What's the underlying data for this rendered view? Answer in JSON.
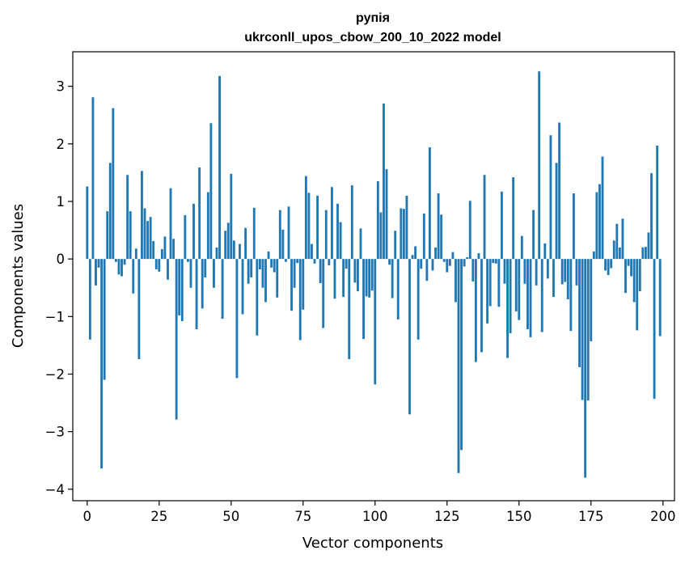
{
  "chart_data": {
    "type": "bar",
    "title": "рупія",
    "subtitle": "ukrconll_upos_cbow_200_10_2022 model",
    "xlabel": "Vector components",
    "ylabel": "Components values",
    "xlim": [
      -5,
      204
    ],
    "ylim": [
      -4.2,
      3.6
    ],
    "xticks": [
      0,
      25,
      50,
      75,
      100,
      125,
      150,
      175,
      200
    ],
    "xtick_labels": [
      "0",
      "25",
      "50",
      "75",
      "100",
      "125",
      "150",
      "175",
      "200"
    ],
    "yticks": [
      3,
      2,
      1,
      0,
      -1,
      -2,
      -3,
      -4
    ],
    "ytick_labels": [
      "3",
      "2",
      "1",
      "0",
      "−1",
      "−2",
      "−3",
      "−4"
    ],
    "color": "#1f77b4",
    "grid": false,
    "legend": "none",
    "x": [
      0,
      1,
      2,
      3,
      4,
      5,
      6,
      7,
      8,
      9,
      10,
      11,
      12,
      13,
      14,
      15,
      16,
      17,
      18,
      19,
      20,
      21,
      22,
      23,
      24,
      25,
      26,
      27,
      28,
      29,
      30,
      31,
      32,
      33,
      34,
      35,
      36,
      37,
      38,
      39,
      40,
      41,
      42,
      43,
      44,
      45,
      46,
      47,
      48,
      49,
      50,
      51,
      52,
      53,
      54,
      55,
      56,
      57,
      58,
      59,
      60,
      61,
      62,
      63,
      64,
      65,
      66,
      67,
      68,
      69,
      70,
      71,
      72,
      73,
      74,
      75,
      76,
      77,
      78,
      79,
      80,
      81,
      82,
      83,
      84,
      85,
      86,
      87,
      88,
      89,
      90,
      91,
      92,
      93,
      94,
      95,
      96,
      97,
      98,
      99,
      100,
      101,
      102,
      103,
      104,
      105,
      106,
      107,
      108,
      109,
      110,
      111,
      112,
      113,
      114,
      115,
      116,
      117,
      118,
      119,
      120,
      121,
      122,
      123,
      124,
      125,
      126,
      127,
      128,
      129,
      130,
      131,
      132,
      133,
      134,
      135,
      136,
      137,
      138,
      139,
      140,
      141,
      142,
      143,
      144,
      145,
      146,
      147,
      148,
      149,
      150,
      151,
      152,
      153,
      154,
      155,
      156,
      157,
      158,
      159,
      160,
      161,
      162,
      163,
      164,
      165,
      166,
      167,
      168,
      169,
      170,
      171,
      172,
      173,
      174,
      175,
      176,
      177,
      178,
      179,
      180,
      181,
      182,
      183,
      184,
      185,
      186,
      187,
      188,
      189,
      190,
      191,
      192,
      193,
      194,
      195,
      196,
      197,
      198,
      199
    ],
    "values": [
      1.26,
      -1.4,
      2.81,
      -0.46,
      -0.15,
      -3.64,
      -2.1,
      0.83,
      1.67,
      2.62,
      -0.05,
      -0.27,
      -0.3,
      -0.1,
      1.46,
      0.83,
      -0.6,
      0.18,
      -1.74,
      1.53,
      0.88,
      0.66,
      0.73,
      0.31,
      -0.18,
      -0.22,
      0.17,
      0.39,
      -0.36,
      1.23,
      0.35,
      -2.79,
      -0.98,
      -1.08,
      0.76,
      -0.05,
      -0.5,
      0.96,
      -1.22,
      1.59,
      -0.86,
      -0.32,
      1.16,
      2.36,
      -0.5,
      0.2,
      3.18,
      -1.04,
      0.49,
      0.63,
      1.48,
      0.32,
      -2.07,
      0.26,
      -0.96,
      0.54,
      -0.43,
      -0.32,
      0.89,
      -1.33,
      -0.18,
      -0.5,
      -0.75,
      0.13,
      -0.15,
      -0.23,
      -0.67,
      0.85,
      0.51,
      -0.05,
      0.91,
      -0.9,
      -0.5,
      -0.07,
      -1.41,
      -0.88,
      1.44,
      1.15,
      0.26,
      -0.08,
      1.1,
      -0.42,
      -1.2,
      0.85,
      -0.11,
      1.25,
      -0.69,
      0.96,
      0.64,
      -0.66,
      -0.17,
      -1.74,
      1.28,
      -0.41,
      -0.56,
      0.53,
      -1.39,
      -0.65,
      -0.67,
      -0.55,
      -2.18,
      1.35,
      0.81,
      2.7,
      1.56,
      -0.1,
      -0.68,
      0.49,
      -1.05,
      0.88,
      0.87,
      1.1,
      -2.7,
      0.07,
      0.22,
      -1.4,
      -0.17,
      0.79,
      -0.38,
      1.94,
      -0.2,
      0.2,
      1.14,
      0.77,
      -0.05,
      -0.23,
      -0.12,
      0.12,
      -0.75,
      -3.72,
      -3.32,
      -0.13,
      0.03,
      1.01,
      -0.39,
      -1.79,
      0.1,
      -1.62,
      1.46,
      -1.12,
      -0.82,
      -0.07,
      -0.08,
      -0.83,
      1.17,
      -0.43,
      -1.72,
      -1.29,
      1.42,
      -0.91,
      -1.06,
      0.4,
      -0.43,
      -1.22,
      -1.36,
      0.85,
      -0.46,
      3.26,
      -1.27,
      0.27,
      -0.34,
      2.15,
      -0.66,
      1.67,
      2.37,
      -0.44,
      -0.4,
      -0.7,
      -1.25,
      1.14,
      -0.46,
      -1.88,
      -2.45,
      -3.8,
      -2.46,
      -1.43,
      0.13,
      1.16,
      1.3,
      1.78,
      -0.2,
      -0.28,
      -0.16,
      0.32,
      0.61,
      0.2,
      0.7,
      -0.59,
      -0.12,
      -0.3,
      -0.75,
      -1.24,
      -0.56,
      0.2,
      0.21,
      0.46,
      1.49,
      -2.43,
      1.97,
      -1.34
    ]
  }
}
